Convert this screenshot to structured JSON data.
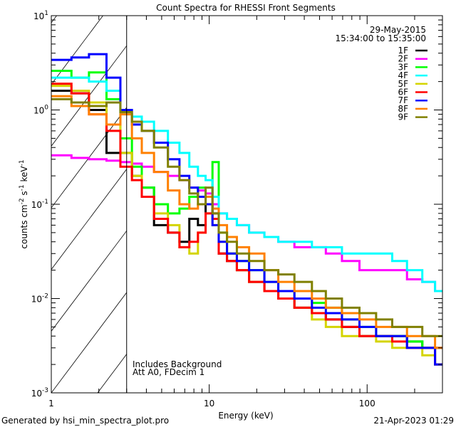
{
  "chart_data": {
    "type": "line",
    "title": "Count Spectra for RHESSI Front Segments",
    "xlabel": "Energy (keV)",
    "ylabel_parts": {
      "base": "counts cm",
      "exp1": "-2",
      "mid1": " s",
      "exp2": "-1",
      "mid2": " keV",
      "exp3": "-1"
    },
    "xscale": "log",
    "yscale": "log",
    "xlim": [
      1,
      300
    ],
    "ylim": [
      0.001,
      10
    ],
    "xtick_labels": [
      {
        "v": 1,
        "label": "1"
      },
      {
        "v": 10,
        "label": "10"
      },
      {
        "v": 100,
        "label": "100"
      }
    ],
    "ytick_labels": [
      {
        "v": 10,
        "base": "10",
        "exp": "1"
      },
      {
        "v": 1,
        "base": "10",
        "exp": "0"
      },
      {
        "v": 0.1,
        "base": "10",
        "exp": "-1"
      },
      {
        "v": 0.01,
        "base": "10",
        "exp": "-2"
      },
      {
        "v": 0.001,
        "base": "10",
        "exp": "-3"
      }
    ],
    "shaded_region_keV": [
      1,
      3
    ],
    "legend_placement": "top-right",
    "date": "29-May-2015",
    "time_range": "15:34:00 to 15:35:00",
    "annotations": [
      "Includes Background",
      "Att A0, FDecim 1"
    ],
    "x": [
      1.2,
      1.5,
      2,
      2.5,
      3,
      3.5,
      4,
      5,
      6,
      7,
      8,
      9,
      10,
      11,
      12,
      14,
      16,
      20,
      25,
      30,
      40,
      50,
      60,
      80,
      100,
      130,
      160,
      200,
      250,
      290
    ],
    "series": [
      {
        "name": "1F",
        "color": "#000000",
        "values": [
          1.6,
          1.5,
          1.0,
          0.35,
          0.35,
          0.2,
          0.15,
          0.06,
          0.05,
          0.04,
          0.07,
          0.06,
          0.1,
          0.08,
          0.03,
          0.025,
          0.02,
          0.015,
          0.012,
          0.01,
          0.008,
          0.007,
          0.006,
          0.005,
          0.004,
          0.004,
          0.004,
          0.0035,
          0.003,
          0.003
        ]
      },
      {
        "name": "2F",
        "color": "#ff00ff",
        "values": [
          0.33,
          0.31,
          0.3,
          0.29,
          0.28,
          0.27,
          0.25,
          0.22,
          0.2,
          0.18,
          0.15,
          0.14,
          0.13,
          0.1,
          0.08,
          0.07,
          0.06,
          0.05,
          0.045,
          0.04,
          0.035,
          0.035,
          0.03,
          0.025,
          0.02,
          0.02,
          0.02,
          0.016,
          0.015,
          0.012
        ]
      },
      {
        "name": "3F",
        "color": "#00ff00",
        "values": [
          2.6,
          2.2,
          2.5,
          1.3,
          0.5,
          0.25,
          0.15,
          0.1,
          0.08,
          0.09,
          0.12,
          0.15,
          0.12,
          0.28,
          0.05,
          0.03,
          0.025,
          0.02,
          0.015,
          0.012,
          0.01,
          0.009,
          0.008,
          0.006,
          0.005,
          0.004,
          0.004,
          0.0035,
          0.003,
          0.002
        ]
      },
      {
        "name": "4F",
        "color": "#00ffff",
        "values": [
          2.2,
          2.2,
          2.0,
          1.6,
          0.9,
          0.85,
          0.75,
          0.6,
          0.45,
          0.35,
          0.25,
          0.2,
          0.18,
          0.12,
          0.08,
          0.07,
          0.06,
          0.05,
          0.045,
          0.04,
          0.04,
          0.035,
          0.035,
          0.03,
          0.03,
          0.03,
          0.025,
          0.02,
          0.015,
          0.012
        ]
      },
      {
        "name": "5F",
        "color": "#d4d400",
        "values": [
          1.8,
          1.6,
          1.2,
          0.7,
          0.35,
          0.2,
          0.12,
          0.08,
          0.06,
          0.035,
          0.03,
          0.05,
          0.08,
          0.06,
          0.04,
          0.03,
          0.02,
          0.015,
          0.012,
          0.01,
          0.008,
          0.006,
          0.005,
          0.004,
          0.004,
          0.0035,
          0.003,
          0.003,
          0.0025,
          0.002
        ]
      },
      {
        "name": "6F",
        "color": "#ff0000",
        "values": [
          1.9,
          1.5,
          0.9,
          0.6,
          0.25,
          0.18,
          0.12,
          0.07,
          0.05,
          0.035,
          0.04,
          0.05,
          0.08,
          0.07,
          0.03,
          0.025,
          0.02,
          0.015,
          0.012,
          0.01,
          0.008,
          0.007,
          0.006,
          0.005,
          0.004,
          0.004,
          0.0035,
          0.003,
          0.003,
          0.002
        ]
      },
      {
        "name": "7F",
        "color": "#0000ff",
        "values": [
          3.4,
          3.6,
          3.9,
          2.2,
          1.0,
          0.7,
          0.6,
          0.45,
          0.3,
          0.2,
          0.15,
          0.12,
          0.1,
          0.06,
          0.04,
          0.03,
          0.025,
          0.02,
          0.015,
          0.012,
          0.01,
          0.008,
          0.007,
          0.006,
          0.005,
          0.004,
          0.004,
          0.003,
          0.003,
          0.002
        ]
      },
      {
        "name": "8F",
        "color": "#ff8000",
        "values": [
          1.4,
          1.1,
          0.9,
          0.7,
          0.9,
          0.5,
          0.35,
          0.22,
          0.14,
          0.1,
          0.09,
          0.1,
          0.12,
          0.09,
          0.06,
          0.045,
          0.035,
          0.03,
          0.02,
          0.015,
          0.012,
          0.01,
          0.008,
          0.007,
          0.006,
          0.005,
          0.005,
          0.004,
          0.004,
          0.003
        ]
      },
      {
        "name": "9F",
        "color": "#808000",
        "values": [
          1.3,
          1.2,
          1.1,
          1.2,
          0.95,
          0.75,
          0.6,
          0.4,
          0.25,
          0.18,
          0.13,
          0.1,
          0.15,
          0.08,
          0.05,
          0.04,
          0.03,
          0.025,
          0.02,
          0.018,
          0.015,
          0.012,
          0.01,
          0.008,
          0.007,
          0.006,
          0.005,
          0.005,
          0.004,
          0.004
        ]
      }
    ]
  },
  "footer": {
    "generated_by": "Generated by hsi_min_spectra_plot.pro",
    "timestamp": "21-Apr-2023 01:29"
  }
}
